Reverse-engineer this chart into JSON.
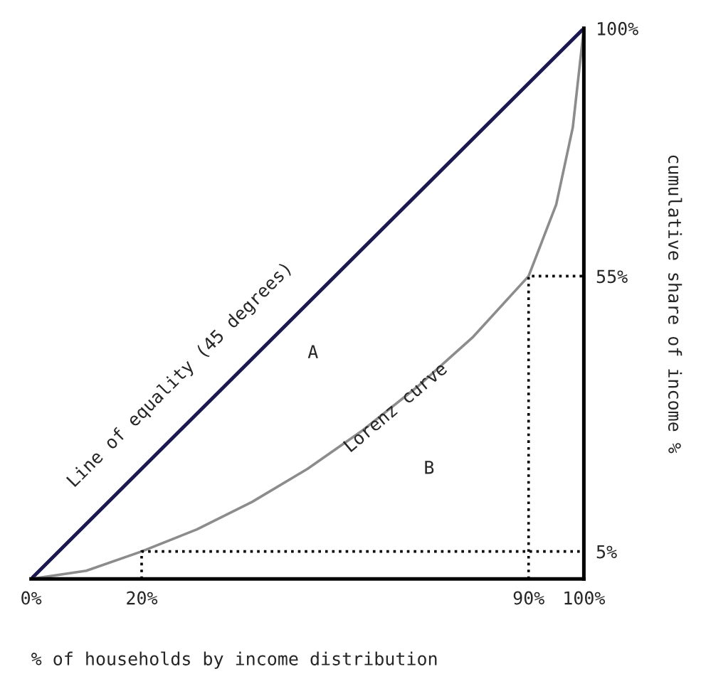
{
  "chart_data": {
    "type": "line",
    "xlabel": "% of households by income distribution",
    "ylabel": "cumulative share of income %",
    "xlim": [
      0,
      100
    ],
    "ylim": [
      0,
      100
    ],
    "xticks": [
      {
        "value": 0,
        "label": "0%"
      },
      {
        "value": 20,
        "label": "20%"
      },
      {
        "value": 90,
        "label": "90%"
      },
      {
        "value": 100,
        "label": "100%"
      }
    ],
    "yticks": [
      {
        "value": 5,
        "label": "5%"
      },
      {
        "value": 55,
        "label": "55%"
      },
      {
        "value": 100,
        "label": "100%"
      }
    ],
    "series": [
      {
        "color": "#1c1850",
        "x": [
          0,
          100
        ],
        "values": [
          0,
          100
        ],
        "line_style": "solid"
      },
      {
        "color": "#8c8c8c",
        "x": [
          0,
          10,
          20,
          30,
          40,
          50,
          60,
          70,
          80,
          90,
          95,
          98,
          100
        ],
        "values": [
          0,
          1.5,
          5,
          9,
          14,
          20,
          27,
          35,
          44,
          55,
          68,
          82,
          100
        ],
        "line_style": "solid"
      },
      {
        "color": "#000000",
        "x": [
          20,
          20,
          100
        ],
        "values": [
          0,
          5,
          5
        ],
        "line_style": "dotted"
      },
      {
        "color": "#000000",
        "x": [
          90,
          90,
          100
        ],
        "values": [
          0,
          55,
          55
        ],
        "line_style": "dotted"
      }
    ],
    "annotations": [
      "Line of equality (45 degrees)",
      "A",
      "Lorenz curve",
      "B"
    ],
    "grid": false,
    "legend": false
  }
}
